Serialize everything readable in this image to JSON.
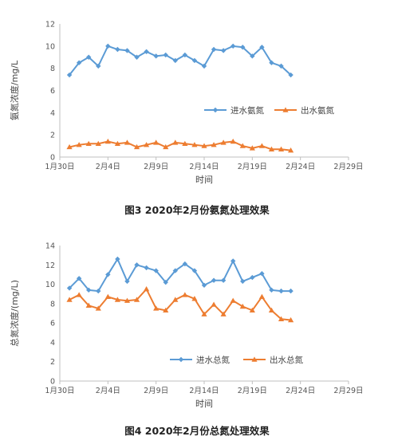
{
  "colors": {
    "inlet": "#5b9bd5",
    "outlet": "#ed7d31",
    "axis": "#bfbfbf",
    "text": "#555555"
  },
  "x_ticks": [
    "1月30日",
    "2月4日",
    "2月9日",
    "2月14日",
    "2月19日",
    "2月24日",
    "2月29日"
  ],
  "charts": [
    {
      "caption": "图3  2020年2月份氨氮处理效果",
      "chart_data": {
        "type": "line",
        "title": "",
        "xlabel": "时间",
        "ylabel": "氨氮浓度/mg/L",
        "ylim": [
          0,
          12
        ],
        "y_ticks": [
          0,
          2,
          4,
          6,
          8,
          10,
          12
        ],
        "x_range_days": [
          0,
          30
        ],
        "x": [
          1,
          2,
          3,
          4,
          5,
          6,
          7,
          8,
          9,
          10,
          11,
          12,
          13,
          14,
          15,
          16,
          17,
          18,
          19,
          20,
          21,
          22,
          23,
          24
        ],
        "series": [
          {
            "name": "进水氨氮",
            "marker": "diamond",
            "values": [
              7.4,
              8.5,
              9.0,
              8.2,
              10.0,
              9.7,
              9.6,
              9.0,
              9.5,
              9.1,
              9.2,
              8.7,
              9.2,
              8.7,
              8.2,
              9.7,
              9.6,
              10.0,
              9.9,
              9.1,
              9.9,
              8.5,
              8.2,
              7.4
            ]
          },
          {
            "name": "出水氨氮",
            "marker": "triangle",
            "values": [
              0.9,
              1.1,
              1.2,
              1.2,
              1.4,
              1.2,
              1.3,
              0.9,
              1.1,
              1.3,
              0.9,
              1.3,
              1.2,
              1.1,
              1.0,
              1.1,
              1.3,
              1.4,
              1.0,
              0.8,
              1.0,
              0.7,
              0.7,
              0.6
            ]
          }
        ],
        "grid": false,
        "legend": "right"
      }
    },
    {
      "caption": "图4  2020年2月份总氮处理效果",
      "chart_data": {
        "type": "line",
        "title": "",
        "xlabel": "时间",
        "ylabel": "总氮浓度/(mg/L)",
        "ylim": [
          0,
          14
        ],
        "y_ticks": [
          0,
          2,
          4,
          6,
          8,
          10,
          12,
          14
        ],
        "x_range_days": [
          0,
          30
        ],
        "x": [
          1,
          2,
          3,
          4,
          5,
          6,
          7,
          8,
          9,
          10,
          11,
          12,
          13,
          14,
          15,
          16,
          17,
          18,
          19,
          20,
          21,
          22,
          23,
          24
        ],
        "series": [
          {
            "name": "进水总氮",
            "marker": "diamond",
            "values": [
              9.6,
              10.6,
              9.4,
              9.3,
              11.0,
              12.6,
              10.3,
              12.0,
              11.7,
              11.4,
              10.2,
              11.4,
              12.1,
              11.4,
              9.9,
              10.4,
              10.4,
              12.4,
              10.3,
              10.7,
              11.1,
              9.4,
              9.3,
              9.3
            ]
          },
          {
            "name": "出水总氮",
            "marker": "triangle",
            "values": [
              8.4,
              8.9,
              7.8,
              7.5,
              8.7,
              8.4,
              8.3,
              8.4,
              9.5,
              7.5,
              7.3,
              8.4,
              8.9,
              8.5,
              6.9,
              7.9,
              6.9,
              8.3,
              7.7,
              7.3,
              8.7,
              7.3,
              6.4,
              6.3
            ]
          }
        ],
        "grid": false,
        "legend": "bottom"
      }
    }
  ]
}
